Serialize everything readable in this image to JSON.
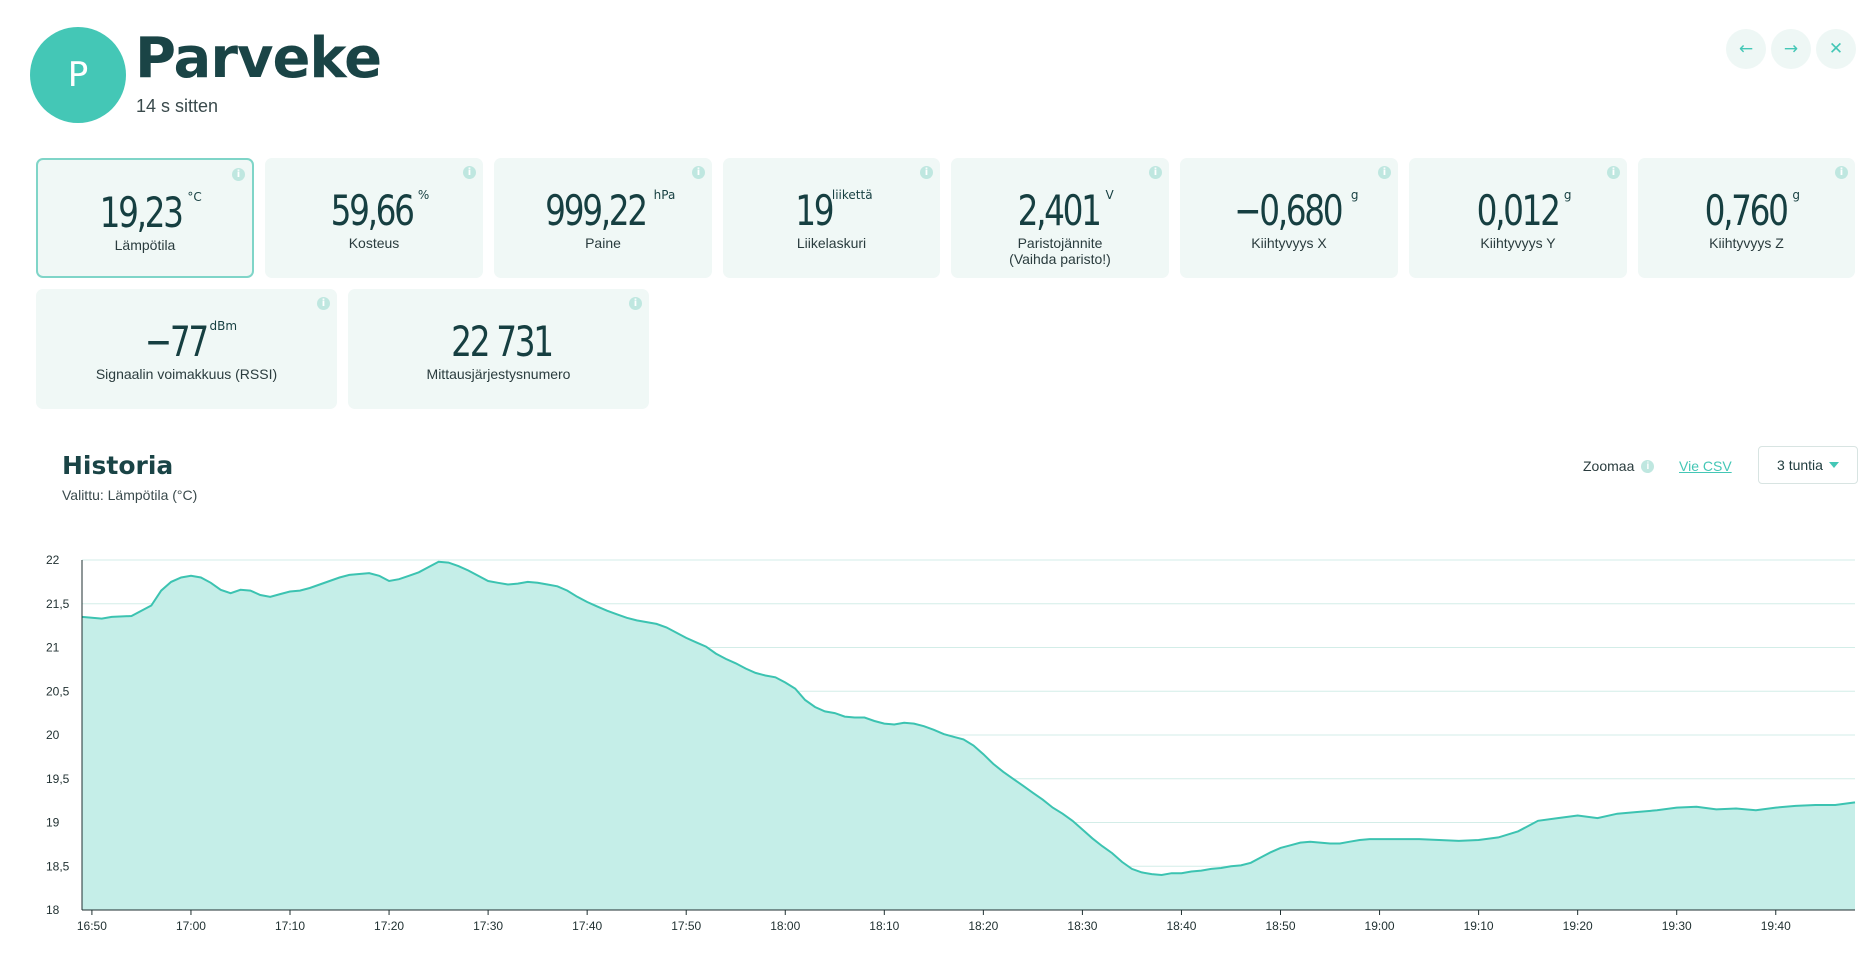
{
  "header": {
    "avatar_letter": "P",
    "title": "Parveke",
    "updated": "14 s sitten",
    "prev_icon": "arrow-left-icon",
    "next_icon": "arrow-right-icon",
    "close_icon": "close-icon"
  },
  "tiles": [
    {
      "value": "19,23",
      "unit": "°C",
      "label": "Lämpötila",
      "selected": true
    },
    {
      "value": "59,66",
      "unit": "%",
      "label": "Kosteus"
    },
    {
      "value": "999,22",
      "unit": "hPa",
      "label": "Paine"
    },
    {
      "value": "19",
      "unit": "liikettä",
      "label": "Liikelaskuri"
    },
    {
      "value": "2,401",
      "unit": "V",
      "label": "Paristojännite",
      "label2": "(Vaihda paristo!)"
    },
    {
      "value": "−0,680",
      "unit": "g",
      "label": "Kiihtyvyys X"
    },
    {
      "value": "0,012",
      "unit": "g",
      "label": "Kiihtyvyys Y"
    },
    {
      "value": "0,760",
      "unit": "g",
      "label": "Kiihtyvyys Z"
    },
    {
      "value": "−77",
      "unit": "dBm",
      "label": "Signaalin voimakkuus (RSSI)"
    },
    {
      "value": "22 731",
      "unit": "",
      "label": "Mittausjärjestysnumero"
    }
  ],
  "history": {
    "title": "Historia",
    "selected": "Valittu: Lämpötila (°C)",
    "zoom_label": "Zoomaa",
    "export_label": "Vie CSV",
    "range_label": "3 tuntia"
  },
  "colors": {
    "accent": "#44c7b6",
    "fill": "#c5eee8",
    "line": "#3cc3b1",
    "tile_bg": "#f0f8f6"
  },
  "chart_data": {
    "type": "area",
    "title": "",
    "xlabel": "",
    "ylabel": "",
    "ylim": [
      18,
      22
    ],
    "yticks": [
      18,
      18.5,
      19,
      19.5,
      20,
      20.5,
      21,
      21.5,
      22
    ],
    "ytick_labels": [
      "18",
      "18,5",
      "19",
      "19,5",
      "20",
      "20,5",
      "21",
      "21,5",
      "22"
    ],
    "xticks": [
      "16:50",
      "17:00",
      "17:10",
      "17:20",
      "17:30",
      "17:40",
      "17:50",
      "18:00",
      "18:10",
      "18:20",
      "18:30",
      "18:40",
      "18:50",
      "19:00",
      "19:10",
      "19:20",
      "19:30",
      "19:40"
    ],
    "grid": true,
    "series": [
      {
        "name": "Lämpötila (°C)",
        "x": [
          "16:49",
          "16:51",
          "16:52",
          "16:54",
          "16:56",
          "16:57",
          "16:58",
          "16:59",
          "17:00",
          "17:01",
          "17:02",
          "17:03",
          "17:04",
          "17:05",
          "17:06",
          "17:07",
          "17:08",
          "17:09",
          "17:10",
          "17:11",
          "17:12",
          "17:13",
          "17:14",
          "17:15",
          "17:16",
          "17:17",
          "17:18",
          "17:19",
          "17:20",
          "17:21",
          "17:22",
          "17:23",
          "17:24",
          "17:25",
          "17:26",
          "17:27",
          "17:28",
          "17:29",
          "17:30",
          "17:31",
          "17:32",
          "17:33",
          "17:34",
          "17:35",
          "17:36",
          "17:37",
          "17:38",
          "17:39",
          "17:40",
          "17:41",
          "17:42",
          "17:43",
          "17:44",
          "17:45",
          "17:46",
          "17:47",
          "17:48",
          "17:49",
          "17:50",
          "17:51",
          "17:52",
          "17:53",
          "17:54",
          "17:55",
          "17:56",
          "17:57",
          "17:58",
          "17:59",
          "18:00",
          "18:01",
          "18:02",
          "18:03",
          "18:04",
          "18:05",
          "18:06",
          "18:07",
          "18:08",
          "18:09",
          "18:10",
          "18:11",
          "18:12",
          "18:13",
          "18:14",
          "18:15",
          "18:16",
          "18:17",
          "18:18",
          "18:19",
          "18:20",
          "18:21",
          "18:22",
          "18:23",
          "18:24",
          "18:25",
          "18:26",
          "18:27",
          "18:28",
          "18:29",
          "18:30",
          "18:31",
          "18:32",
          "18:33",
          "18:34",
          "18:35",
          "18:36",
          "18:37",
          "18:38",
          "18:39",
          "18:40",
          "18:41",
          "18:42",
          "18:43",
          "18:44",
          "18:45",
          "18:46",
          "18:47",
          "18:48",
          "18:49",
          "18:50",
          "18:51",
          "18:52",
          "18:53",
          "18:54",
          "18:55",
          "18:56",
          "18:57",
          "18:58",
          "18:59",
          "19:00",
          "19:02",
          "19:04",
          "19:06",
          "19:08",
          "19:10",
          "19:12",
          "19:14",
          "19:16",
          "19:18",
          "19:20",
          "19:22",
          "19:24",
          "19:26",
          "19:28",
          "19:30",
          "19:32",
          "19:34",
          "19:36",
          "19:38",
          "19:40",
          "19:42",
          "19:44",
          "19:46",
          "19:48"
        ],
        "values": [
          21.35,
          21.33,
          21.35,
          21.36,
          21.48,
          21.65,
          21.75,
          21.8,
          21.82,
          21.8,
          21.74,
          21.66,
          21.62,
          21.66,
          21.65,
          21.6,
          21.58,
          21.61,
          21.64,
          21.65,
          21.68,
          21.72,
          21.76,
          21.8,
          21.83,
          21.84,
          21.85,
          21.82,
          21.76,
          21.78,
          21.82,
          21.86,
          21.92,
          21.98,
          21.97,
          21.93,
          21.88,
          21.82,
          21.76,
          21.74,
          21.72,
          21.73,
          21.75,
          21.74,
          21.72,
          21.7,
          21.65,
          21.58,
          21.52,
          21.47,
          21.42,
          21.38,
          21.34,
          21.31,
          21.29,
          21.27,
          21.23,
          21.17,
          21.11,
          21.06,
          21.01,
          20.93,
          20.87,
          20.82,
          20.76,
          20.71,
          20.68,
          20.66,
          20.6,
          20.53,
          20.4,
          20.32,
          20.27,
          20.25,
          20.21,
          20.2,
          20.2,
          20.16,
          20.13,
          20.12,
          20.14,
          20.13,
          20.1,
          20.06,
          20.01,
          19.98,
          19.95,
          19.88,
          19.78,
          19.67,
          19.58,
          19.5,
          19.42,
          19.34,
          19.26,
          19.17,
          19.1,
          19.02,
          18.92,
          18.82,
          18.73,
          18.65,
          18.55,
          18.47,
          18.43,
          18.41,
          18.4,
          18.42,
          18.42,
          18.44,
          18.45,
          18.47,
          18.48,
          18.5,
          18.51,
          18.54,
          18.6,
          18.66,
          18.71,
          18.74,
          18.77,
          18.78,
          18.77,
          18.76,
          18.76,
          18.78,
          18.8,
          18.81,
          18.81,
          18.81,
          18.81,
          18.8,
          18.79,
          18.8,
          18.83,
          18.9,
          19.02,
          19.05,
          19.08,
          19.05,
          19.1,
          19.12,
          19.14,
          19.17,
          19.18,
          19.15,
          19.16,
          19.14,
          19.17,
          19.19,
          19.2,
          19.2,
          19.23
        ]
      }
    ]
  }
}
